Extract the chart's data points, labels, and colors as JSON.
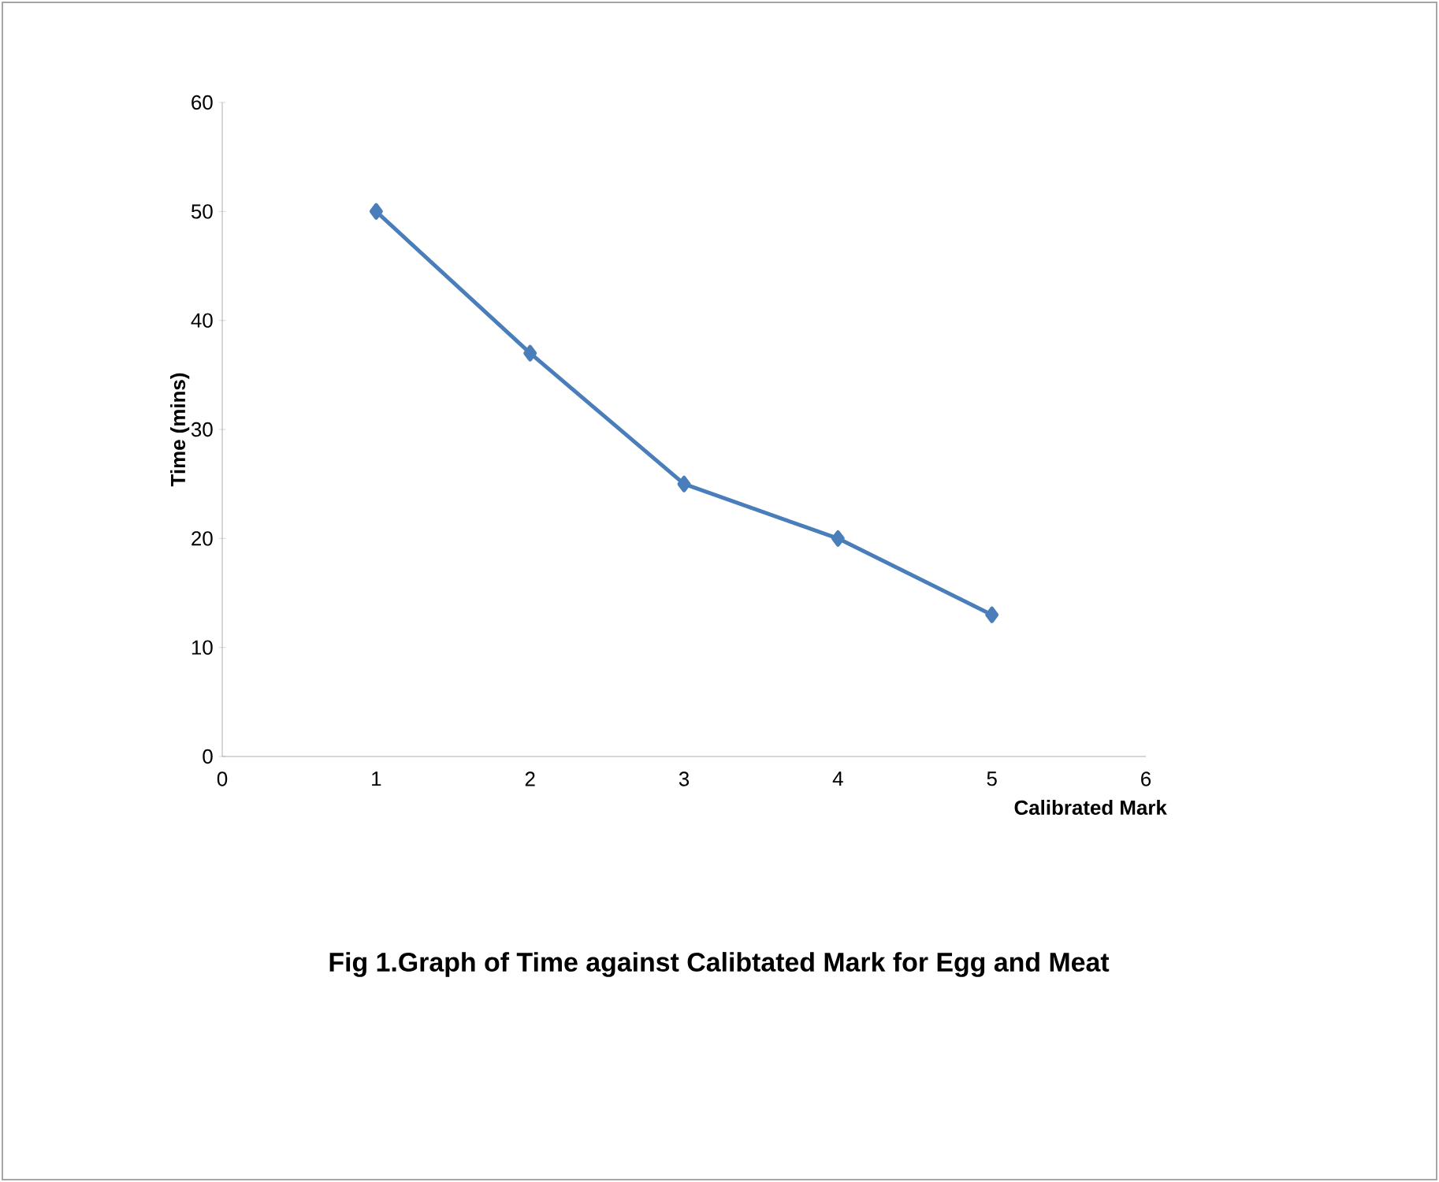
{
  "chart_data": {
    "type": "line",
    "xlabel": "Calibrated Mark",
    "ylabel": "Time (mins)",
    "annotations": [
      "Fig 1.Graph of Time against Calibtated Mark  for  Egg  and  Meat"
    ],
    "x": [
      1,
      2,
      3,
      4,
      5
    ],
    "series": [
      {
        "color": "#4a7ebb",
        "values": [
          50,
          37,
          25,
          20,
          13
        ]
      }
    ],
    "xlim": [
      0,
      6
    ],
    "ylim": [
      0,
      60
    ],
    "xticks": [
      0,
      1,
      2,
      3,
      4,
      5,
      6
    ],
    "yticks": [
      0,
      10,
      20,
      30,
      40,
      50,
      60
    ],
    "grid": false,
    "marker": "diamond",
    "line_style": "solid"
  }
}
